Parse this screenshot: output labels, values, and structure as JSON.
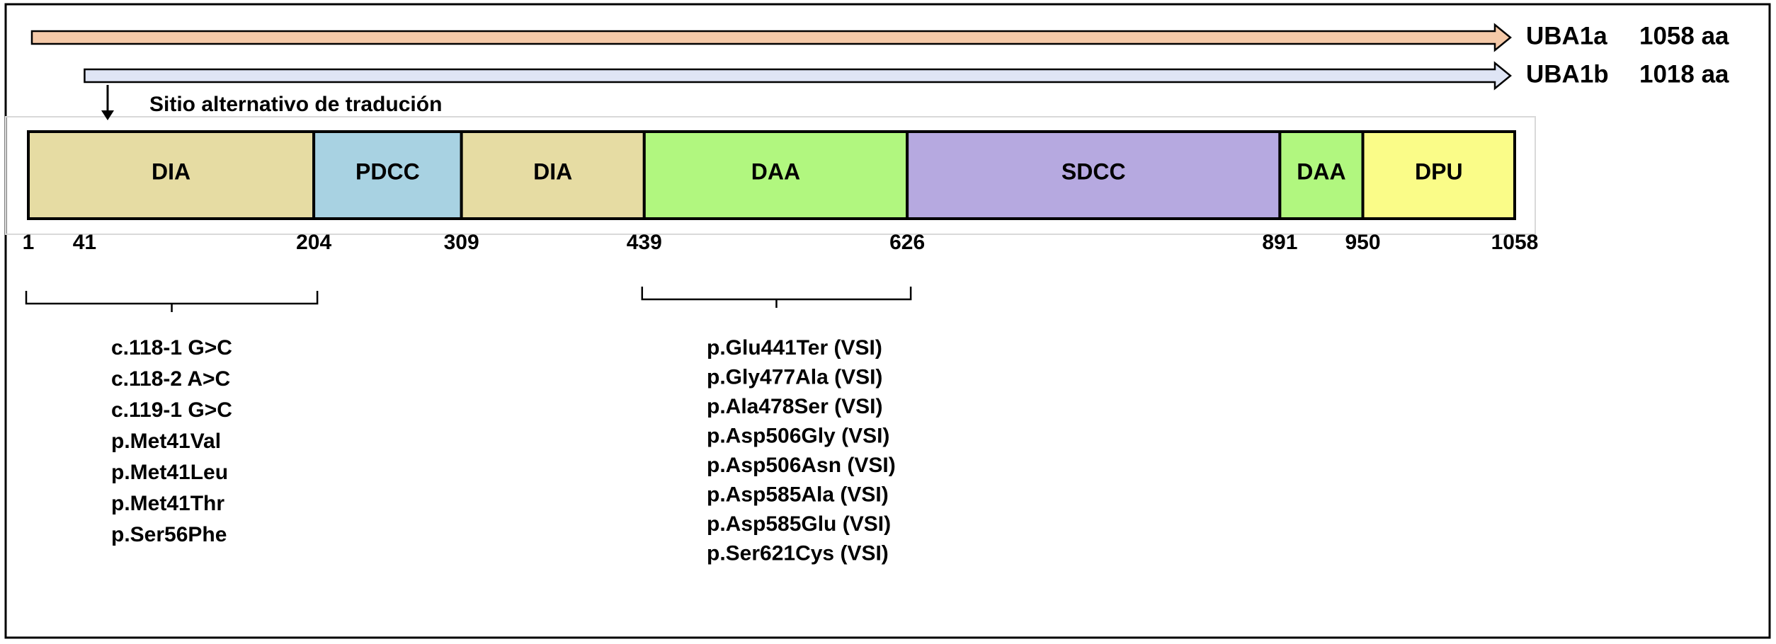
{
  "isoforms": [
    {
      "name": "UBA1a",
      "length": "1058 aa",
      "color": "#f4c9a8"
    },
    {
      "name": "UBA1b",
      "length": "1018 aa",
      "color": "#dfe5f5"
    }
  ],
  "annotation": "Sitio alternativo de tradución",
  "domains": [
    {
      "label": "DIA",
      "color": "#e6dca3",
      "start": 1,
      "end": 204
    },
    {
      "label": "PDCC",
      "color": "#a8d2e2",
      "start": 204,
      "end": 309
    },
    {
      "label": "DIA",
      "color": "#e6dca3",
      "start": 309,
      "end": 439
    },
    {
      "label": "DAA",
      "color": "#b1f77f",
      "start": 439,
      "end": 626
    },
    {
      "label": "SDCC",
      "color": "#b6a9e0",
      "start": 626,
      "end": 891
    },
    {
      "label": "DAA",
      "color": "#b1f77f",
      "start": 891,
      "end": 950
    },
    {
      "label": "DPU",
      "color": "#fafc88",
      "start": 950,
      "end": 1058
    }
  ],
  "positions": [
    1,
    41,
    204,
    309,
    439,
    626,
    891,
    950,
    1058
  ],
  "mutation_groups": [
    {
      "start": 1,
      "end": 204,
      "items": [
        "c.118-1 G>C",
        "c.118-2 A>C",
        "c.119-1 G>C",
        "p.Met41Val",
        "p.Met41Leu",
        "p.Met41Thr",
        "p.Ser56Phe"
      ]
    },
    {
      "start": 439,
      "end": 626,
      "items": [
        "p.Glu441Ter (VSI)",
        "p.Gly477Ala (VSI)",
        "p.Ala478Ser (VSI)",
        "p.Asp506Gly (VSI)",
        "p.Asp506Asn (VSI)",
        "p.Asp585Ala (VSI)",
        "p.Asp585Glu (VSI)",
        "p.Ser621Cys (VSI)"
      ]
    }
  ]
}
